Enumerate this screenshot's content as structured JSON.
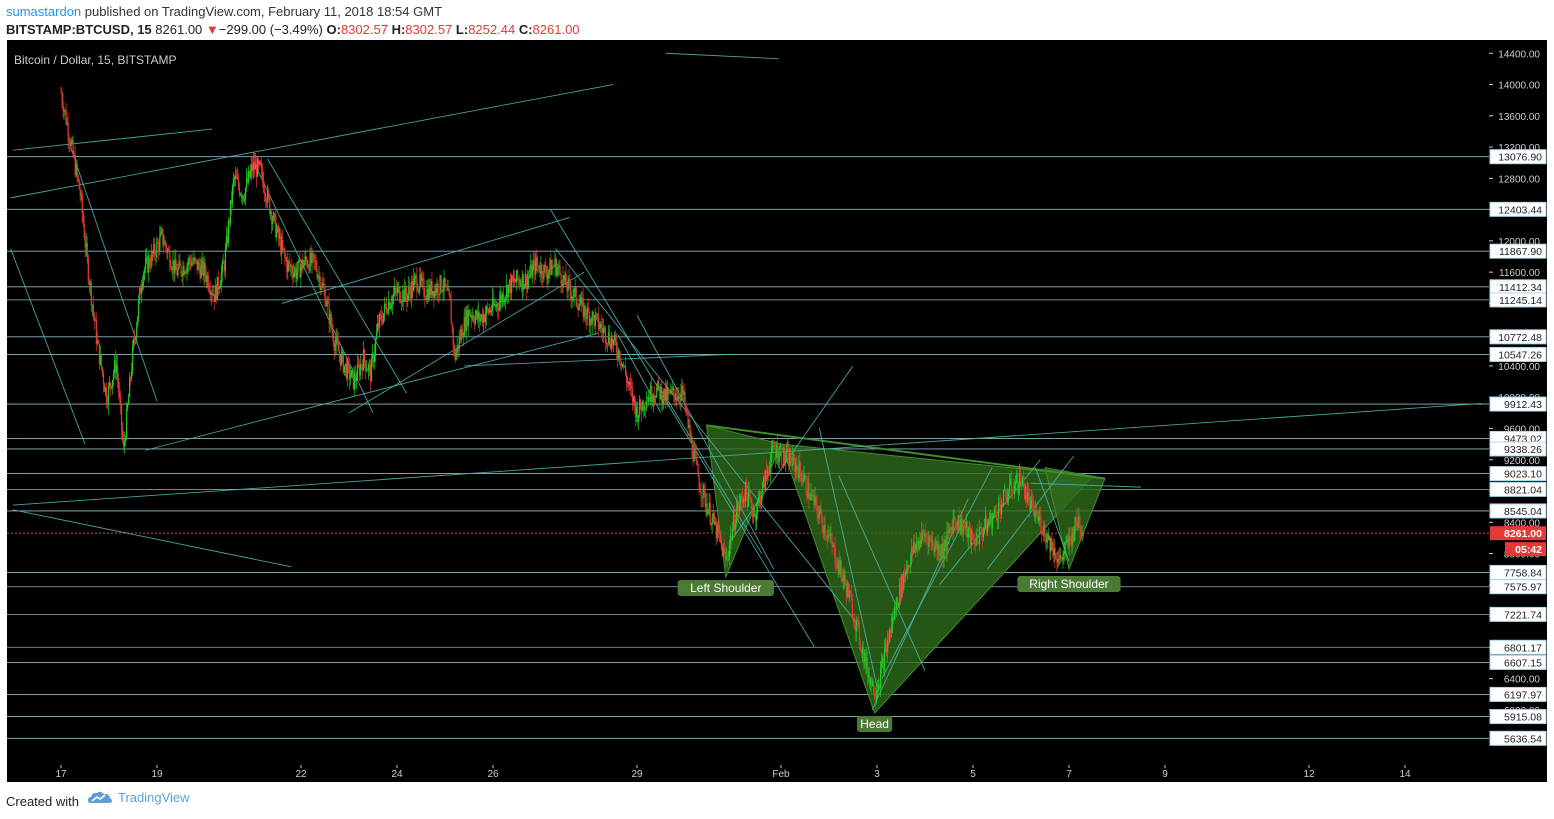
{
  "header": {
    "author": "sumastardon",
    "published_text": "published on TradingView.com, February 11, 2018 18:54 GMT",
    "symbol": "BITSTAMP:BTCUSD, 15",
    "last": "8261.00",
    "change_arrow": "▼",
    "change": "−299.00 (−3.49%)",
    "o_label": "O:",
    "o_value": "8302.57",
    "h_label": "H:",
    "h_value": "8302.57",
    "l_label": "L:",
    "l_value": "8252.44",
    "c_label": "C:",
    "c_value": "8261.00"
  },
  "footer": {
    "created_with": "Created with",
    "brand": "TradingView",
    "brand_icon": "tradingview-cloud-icon"
  },
  "colors": {
    "background": "#000000",
    "up_candle": "#22cc22",
    "down_candle": "#e53935",
    "trend_line": "#4db6ac",
    "level_line": "#a8d8ea",
    "pattern_fill": "#2e6b1c",
    "label_bg": "#4a7a33",
    "price_tag_red": "#e53935",
    "axis_text": "#cccccc"
  },
  "chart_data": {
    "type": "candlestick",
    "title": "Bitcoin / Dollar, 15, BITSTAMP",
    "ylim": [
      5500,
      14480
    ],
    "x_ticks": [
      "17",
      "19",
      "22",
      "24",
      "26",
      "29",
      "Feb",
      "3",
      "5",
      "7",
      "9",
      "12",
      "14"
    ],
    "y_ticks": [
      14400,
      14000,
      13600,
      13200,
      12800,
      12400,
      12000,
      11600,
      11200,
      10800,
      10400,
      10000,
      9600,
      9200,
      8800,
      8400,
      8000,
      7600,
      7200,
      6800,
      6400,
      6000
    ],
    "level_tags": [
      13076.9,
      12403.44,
      11867.9,
      11412.34,
      11245.14,
      10772.48,
      10547.26,
      9912.43,
      9473.02,
      9338.26,
      9023.1,
      8821.04,
      8545.04,
      7758.84,
      7575.97,
      7221.74,
      6801.17,
      6607.15,
      6197.97,
      5915.08,
      5636.54
    ],
    "current_price": "8261.00",
    "countdown": "05:42",
    "series": [
      {
        "values": [
          [
            0,
            13900
          ],
          [
            0.25,
            13100
          ],
          [
            0.4,
            12600
          ],
          [
            0.55,
            11700
          ],
          [
            0.75,
            10700
          ],
          [
            0.95,
            10000
          ],
          [
            1.15,
            10450
          ],
          [
            1.3,
            9300
          ],
          [
            1.5,
            10600
          ],
          [
            1.7,
            11600
          ],
          [
            1.9,
            11800
          ],
          [
            2.1,
            12050
          ],
          [
            2.4,
            11600
          ],
          [
            2.7,
            11750
          ],
          [
            3.0,
            11600
          ],
          [
            3.2,
            11300
          ],
          [
            3.4,
            11700
          ],
          [
            3.6,
            12800
          ],
          [
            3.8,
            12600
          ],
          [
            4.0,
            12950
          ],
          [
            4.15,
            12900
          ],
          [
            4.3,
            12550
          ],
          [
            4.5,
            12100
          ],
          [
            4.7,
            11700
          ],
          [
            4.9,
            11600
          ],
          [
            5.1,
            11750
          ],
          [
            5.3,
            11700
          ],
          [
            5.5,
            11300
          ],
          [
            5.7,
            10700
          ],
          [
            5.9,
            10400
          ],
          [
            6.1,
            10200
          ],
          [
            6.3,
            10500
          ],
          [
            6.45,
            10300
          ],
          [
            6.6,
            10900
          ],
          [
            6.8,
            11200
          ],
          [
            7.0,
            11350
          ],
          [
            7.2,
            11300
          ],
          [
            7.4,
            11500
          ],
          [
            7.6,
            11350
          ],
          [
            7.8,
            11400
          ],
          [
            7.95,
            11450
          ],
          [
            8.1,
            11200
          ],
          [
            8.2,
            10500
          ],
          [
            8.35,
            10850
          ],
          [
            8.5,
            11100
          ],
          [
            8.7,
            11000
          ],
          [
            8.9,
            11100
          ],
          [
            9.1,
            11200
          ],
          [
            9.3,
            11400
          ],
          [
            9.5,
            11500
          ],
          [
            9.7,
            11500
          ],
          [
            9.9,
            11700
          ],
          [
            10.1,
            11600
          ],
          [
            10.3,
            11700
          ],
          [
            10.5,
            11450
          ],
          [
            10.7,
            11300
          ],
          [
            10.9,
            11100
          ],
          [
            11.1,
            11000
          ],
          [
            11.3,
            10850
          ],
          [
            11.5,
            10700
          ],
          [
            11.65,
            10550
          ],
          [
            11.8,
            10200
          ],
          [
            12.0,
            9800
          ],
          [
            12.2,
            10000
          ],
          [
            12.4,
            10100
          ],
          [
            12.6,
            10000
          ],
          [
            12.8,
            10050
          ],
          [
            12.95,
            10050
          ],
          [
            13.1,
            9500
          ],
          [
            13.3,
            8900
          ],
          [
            13.5,
            8550
          ],
          [
            13.7,
            8200
          ],
          [
            13.85,
            7900
          ],
          [
            14.05,
            8500
          ],
          [
            14.25,
            8800
          ],
          [
            14.45,
            8500
          ],
          [
            14.65,
            8900
          ],
          [
            14.85,
            9350
          ],
          [
            15.0,
            9250
          ],
          [
            15.2,
            9200
          ],
          [
            15.4,
            9050
          ],
          [
            15.6,
            8750
          ],
          [
            15.8,
            8500
          ],
          [
            16.0,
            8200
          ],
          [
            16.2,
            7850
          ],
          [
            16.4,
            7500
          ],
          [
            16.6,
            7000
          ],
          [
            16.8,
            6500
          ],
          [
            16.95,
            6250
          ],
          [
            17.05,
            6400
          ],
          [
            17.2,
            6800
          ],
          [
            17.4,
            7350
          ],
          [
            17.6,
            7800
          ],
          [
            17.8,
            8100
          ],
          [
            18.0,
            8250
          ],
          [
            18.2,
            8100
          ],
          [
            18.4,
            8050
          ],
          [
            18.6,
            8450
          ],
          [
            18.8,
            8350
          ],
          [
            19.0,
            8150
          ],
          [
            19.2,
            8300
          ],
          [
            19.4,
            8450
          ],
          [
            19.6,
            8650
          ],
          [
            19.8,
            8850
          ],
          [
            20.0,
            8950
          ],
          [
            20.2,
            8600
          ],
          [
            20.4,
            8400
          ],
          [
            20.6,
            8150
          ],
          [
            20.8,
            7900
          ],
          [
            21.0,
            8150
          ],
          [
            21.2,
            8450
          ],
          [
            21.3,
            8261
          ]
        ]
      }
    ],
    "annotations": [
      "Left Shoulder",
      "Head",
      "Right Shoulder"
    ]
  }
}
